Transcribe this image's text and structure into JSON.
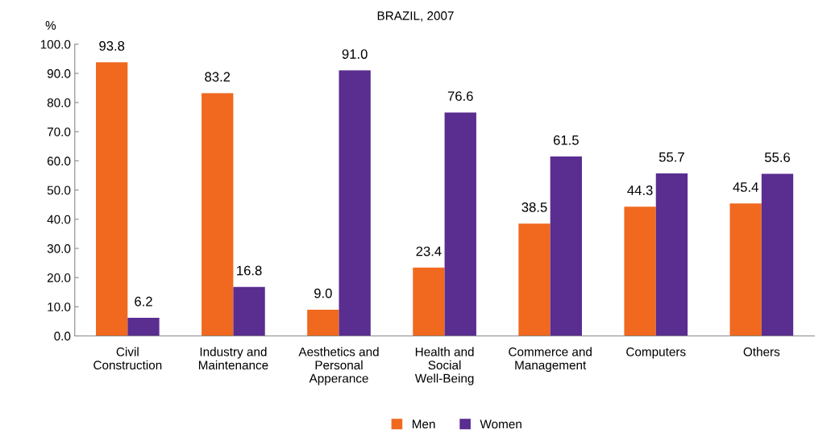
{
  "chart_data": {
    "type": "bar",
    "title": "BRAZIL, 2007",
    "ylabel": "%",
    "categories": [
      "Civil\nConstruction",
      "Industry and\nMaintenance",
      "Aesthetics and\nPersonal\nApperance",
      "Health and\nSocial\nWell-Being",
      "Commerce and\nManagement",
      "Computers",
      "Others"
    ],
    "series": [
      {
        "name": "Men",
        "color": "#f0691e",
        "values": [
          93.8,
          83.2,
          9.0,
          23.4,
          38.5,
          44.3,
          45.4
        ],
        "value_labels": [
          "93.8",
          "83.2",
          "9.0",
          "23.4",
          "38.5",
          "44.3",
          "45.4"
        ]
      },
      {
        "name": "Women",
        "color": "#5a2d91",
        "values": [
          6.2,
          16.8,
          91.0,
          76.6,
          61.5,
          55.7,
          55.6
        ],
        "value_labels": [
          "6.2",
          "16.8",
          "91.0",
          "76.6",
          "61.5",
          "55.7",
          "55.6"
        ]
      }
    ],
    "ylim": [
      0,
      100
    ],
    "yticks": [
      {
        "value": 0,
        "label": "0.0"
      },
      {
        "value": 10,
        "label": "10.0"
      },
      {
        "value": 20,
        "label": "20.0"
      },
      {
        "value": 30,
        "label": "30.0"
      },
      {
        "value": 40,
        "label": "40.0"
      },
      {
        "value": 50,
        "label": "50.0"
      },
      {
        "value": 60,
        "label": "60.0"
      },
      {
        "value": 70,
        "label": "70.0"
      },
      {
        "value": 80,
        "label": "80.0"
      },
      {
        "value": 90,
        "label": "90.0"
      },
      {
        "value": 100,
        "label": "100.0"
      }
    ],
    "grid": false,
    "legend": "bottom"
  }
}
